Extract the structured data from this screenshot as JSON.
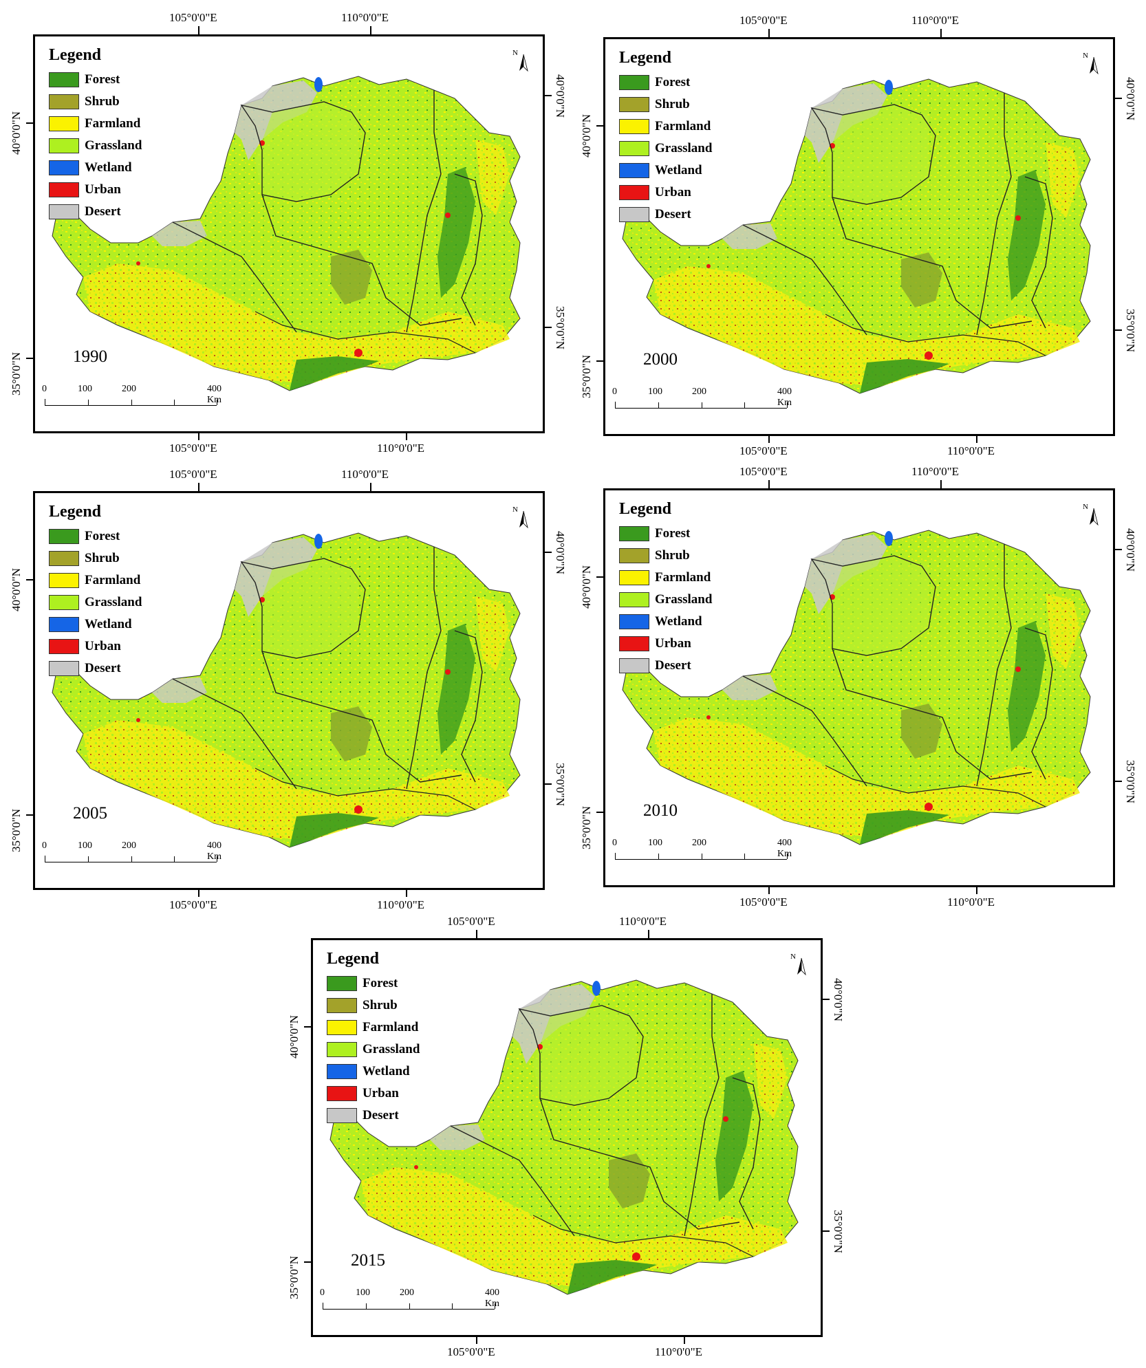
{
  "figure": {
    "legend_title": "Legend",
    "classes": [
      {
        "label": "Forest",
        "color": "#3a9a1e"
      },
      {
        "label": "Shrub",
        "color": "#a3a22a"
      },
      {
        "label": "Farmland",
        "color": "#fbf200"
      },
      {
        "label": "Grassland",
        "color": "#aef020"
      },
      {
        "label": "Wetland",
        "color": "#1565e6"
      },
      {
        "label": "Urban",
        "color": "#e81414"
      },
      {
        "label": "Desert",
        "color": "#c7c7c7"
      }
    ],
    "coords": {
      "lon_105": "105°0'0\"E",
      "lon_110": "110°0'0\"E",
      "lat_40": "40°0'0\"N",
      "lat_35": "35°0'0\"N"
    },
    "scale": {
      "t0": "0",
      "t1": "100",
      "t2": "200",
      "t3": "400 Km"
    },
    "north_label": "N",
    "panels": [
      {
        "year": "1990"
      },
      {
        "year": "2000"
      },
      {
        "year": "2005"
      },
      {
        "year": "2010"
      },
      {
        "year": "2015"
      }
    ]
  }
}
